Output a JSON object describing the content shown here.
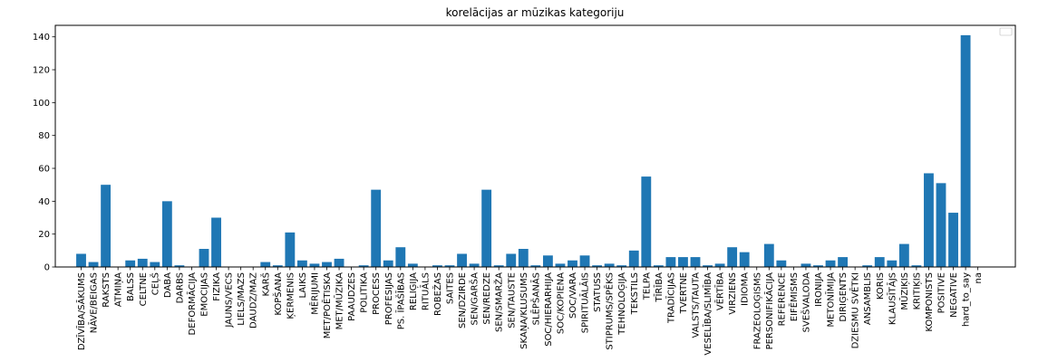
{
  "chart_data": {
    "type": "bar",
    "title": "korelācijas ar mūzikas kategoriju",
    "xlabel": "",
    "ylabel": "",
    "ylim": [
      0,
      147
    ],
    "yticks": [
      0,
      20,
      40,
      60,
      80,
      100,
      120,
      140
    ],
    "legend": "top-right (empty)",
    "grid": false,
    "bar_color": "#1f77b4",
    "categories": [
      "DZĪVĪBA/SĀKUMS",
      "NĀVE/BEIGAS",
      "RAKSTS",
      "ATMIŅA",
      "BALSS",
      "CELTNE",
      "CEĻŠ",
      "DABA",
      "DARBS",
      "DEFORMĀCIJA",
      "EMOCIJAS",
      "FIZIKA",
      "JAUNS/VECS",
      "LIELS/MAZS",
      "DAUDZ/MAZ",
      "KARŠ",
      "KOPŠANA",
      "ĶERMENIS",
      "LAIKS",
      "MĒRIJUMI",
      "MET/POĒTISKA",
      "MET/MŪZIKA",
      "PAAUDZES",
      "POLITIKA",
      "PROCESS",
      "PROFESIJAS",
      "PS. ĪPAŠĪBAS",
      "RELIĢIJA",
      "RITUĀLS",
      "ROBEŽAS",
      "SAITES",
      "SEN/DZIRDE",
      "SEN/GARŠA",
      "SEN/REDZE",
      "SEN/SMARŽA",
      "SEN/TAUSTE",
      "SKAŅA/KLUSUMS",
      "SLĒPŠANĀS",
      "SOC/HIERARHIJA",
      "SOC/KOPIENA",
      "SOC/VARA",
      "SPIRITUĀLĀIS",
      "STATUSS",
      "STIPRUMS/SPĒKS",
      "TEHNOLOĢIJA",
      "TEKSTILS",
      "TELPA",
      "TĪRĪBA",
      "TRADĪCIJAS",
      "TVERTNE",
      "VALSTS/TAUTA",
      "VESELĪBA/SLIMĪBA",
      "VĒRTĪBA",
      "VIRZIENS",
      "IDIOMA",
      "FRAZEOLOĢISMS",
      "PERSONIFIKĀCIJA",
      "REFERENCE",
      "EIFĒMISMS",
      "SVEŠVALODA",
      "IRONIJA",
      "METONĪMIJA",
      "DIRIĢENTS",
      "DZIESMU SVĒTKI",
      "ANSAMBLIS",
      "KORIS",
      "KLAUSĪTĀJS",
      "MŪZIĶIS",
      "KRITIĶIS",
      "KOMPONISTS",
      "POSITIVE",
      "NEGATIVE",
      "hard_to_say",
      "na"
    ],
    "values": [
      8,
      3,
      50,
      0,
      4,
      5,
      3,
      40,
      1,
      0,
      11,
      30,
      0,
      0,
      0,
      3,
      1,
      21,
      4,
      2,
      3,
      5,
      0,
      1,
      47,
      4,
      12,
      2,
      0,
      1,
      1,
      8,
      2,
      47,
      1,
      8,
      11,
      1,
      7,
      2,
      4,
      7,
      1,
      2,
      1,
      10,
      55,
      1,
      6,
      6,
      6,
      1,
      2,
      12,
      9,
      0,
      14,
      4,
      0,
      2,
      1,
      4,
      6,
      0,
      1,
      6,
      4,
      14,
      1,
      57,
      51,
      33,
      141,
      0
    ]
  }
}
